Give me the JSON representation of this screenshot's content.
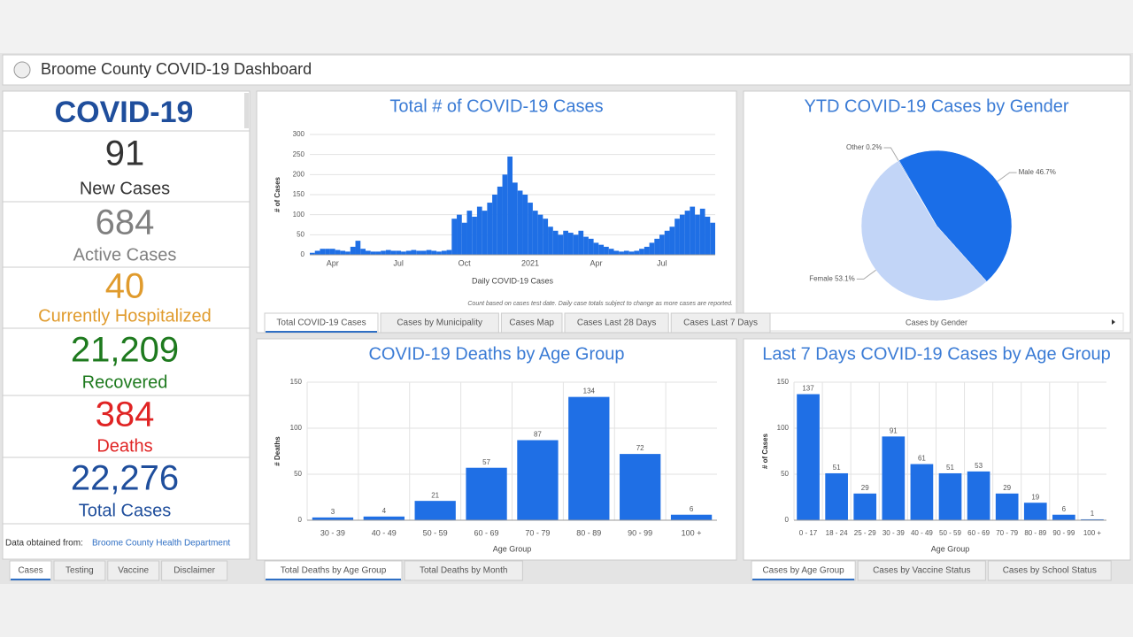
{
  "header": {
    "title": "Broome County COVID-19 Dashboard"
  },
  "stats": {
    "heading": "COVID-19",
    "items": [
      {
        "value": "91",
        "label": "New Cases",
        "color": "#333333"
      },
      {
        "value": "684",
        "label": "Active Cases",
        "color": "#808080"
      },
      {
        "value": "40",
        "label": "Currently Hospitalized",
        "color": "#e09b2d"
      },
      {
        "value": "21,209",
        "label": "Recovered",
        "color": "#1e7a1e"
      },
      {
        "value": "384",
        "label": "Deaths",
        "color": "#e02424"
      },
      {
        "value": "22,276",
        "label": "Total Cases",
        "color": "#1f4e9c"
      }
    ],
    "source_prefix": "Data obtained from:",
    "source_link": "Broome County Health Department",
    "tabs": [
      "Cases",
      "Testing",
      "Vaccine",
      "Disclaimer"
    ]
  },
  "chart_data": [
    {
      "type": "bar",
      "title": "Total # of COVID-19 Cases",
      "y_label": "# of Cases",
      "x_label": "Daily COVID-19 Cases",
      "note": "Count based on cases  test date.  Daily case totals subject to change as more cases are reported.",
      "color": "#1f6fe5",
      "categories": [
        null,
        null,
        null,
        null,
        "Apr",
        null,
        null,
        null,
        null,
        null,
        null,
        null,
        null,
        null,
        null,
        null,
        null,
        "Jul",
        null,
        null,
        null,
        null,
        null,
        null,
        null,
        null,
        null,
        null,
        null,
        null,
        "Oct",
        null,
        null,
        null,
        null,
        null,
        null,
        null,
        null,
        null,
        null,
        null,
        null,
        "2021",
        null,
        null,
        null,
        null,
        null,
        null,
        null,
        null,
        null,
        null,
        null,
        null,
        "Apr",
        null,
        null,
        null,
        null,
        null,
        null,
        null,
        null,
        null,
        null,
        null,
        null,
        "Jul",
        null,
        null,
        null,
        null,
        null,
        null,
        null,
        null,
        null,
        null
      ],
      "values": [
        5,
        10,
        15,
        15,
        15,
        12,
        10,
        8,
        20,
        35,
        15,
        10,
        8,
        8,
        10,
        12,
        10,
        10,
        8,
        10,
        12,
        10,
        10,
        12,
        10,
        8,
        10,
        12,
        90,
        100,
        80,
        110,
        95,
        120,
        110,
        130,
        150,
        170,
        200,
        245,
        180,
        160,
        150,
        130,
        110,
        100,
        90,
        70,
        60,
        50,
        60,
        55,
        50,
        60,
        45,
        40,
        30,
        25,
        20,
        15,
        10,
        8,
        10,
        8,
        10,
        15,
        20,
        30,
        40,
        50,
        60,
        70,
        90,
        100,
        110,
        120,
        100,
        115,
        95,
        80
      ],
      "ylim": [
        0,
        300
      ],
      "yticks": [
        0,
        50,
        100,
        150,
        200,
        250,
        300
      ],
      "grid": true,
      "tabs": [
        "Total COVID-19 Cases",
        "Cases by Municipality",
        "Cases Map",
        "Cases Last 28 Days",
        "Cases Last 7 Days"
      ]
    },
    {
      "type": "pie",
      "title": "YTD COVID-19 Cases by Gender",
      "categories": [
        "Male",
        "Female",
        "Other"
      ],
      "values": [
        46.7,
        53.1,
        0.2
      ],
      "value_labels": [
        "Male 46.7%",
        "Female 53.1%",
        "Other 0.2%"
      ],
      "colors": [
        "#1a6ee8",
        "#c2d5f7",
        "#6b9be6"
      ],
      "footer": "Cases by Gender"
    },
    {
      "type": "bar",
      "title": "COVID-19 Deaths by Age Group",
      "y_label": "# Deaths",
      "x_label": "Age Group",
      "color": "#1f6fe5",
      "categories": [
        "30 - 39",
        "40 - 49",
        "50 - 59",
        "60 - 69",
        "70 - 79",
        "80 - 89",
        "90 - 99",
        "100 +"
      ],
      "values": [
        3,
        4,
        21,
        57,
        87,
        134,
        72,
        6
      ],
      "ylim": [
        0,
        150
      ],
      "yticks": [
        0,
        50,
        100,
        150
      ],
      "grid": true,
      "show_values": true,
      "tabs": [
        "Total Deaths by Age Group",
        "Total Deaths by Month"
      ]
    },
    {
      "type": "bar",
      "title": "Last 7 Days COVID-19 Cases by Age Group",
      "y_label": "# of Cases",
      "x_label": "Age Group",
      "color": "#1f6fe5",
      "categories": [
        "0 - 17",
        "18 - 24",
        "25 - 29",
        "30 - 39",
        "40 - 49",
        "50 - 59",
        "60 - 69",
        "70 - 79",
        "80 - 89",
        "90 - 99",
        "100 +"
      ],
      "values": [
        137,
        51,
        29,
        91,
        61,
        51,
        53,
        29,
        19,
        6,
        1
      ],
      "ylim": [
        0,
        150
      ],
      "yticks": [
        0,
        50,
        100,
        150
      ],
      "grid": true,
      "show_values": true,
      "tabs": [
        "Cases by Age Group",
        "Cases by Vaccine Status",
        "Cases by School Status"
      ]
    }
  ]
}
